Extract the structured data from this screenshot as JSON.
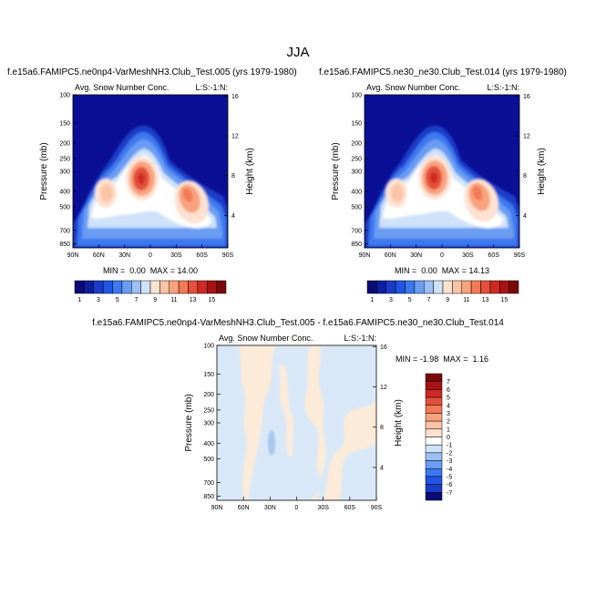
{
  "page_title": "JJA",
  "colors": {
    "neg_scale": [
      "#0a0a78",
      "#0d1fa0",
      "#1a3cc8",
      "#2255e6",
      "#3d78f0",
      "#6a9cf2",
      "#9cc0f5",
      "#cfe2fa"
    ],
    "pos_scale": [
      "#ffffff",
      "#fde2d2",
      "#fcc4a6",
      "#f9a27e",
      "#f27a56",
      "#e4503a",
      "#cc2a22",
      "#a81212",
      "#7a0808"
    ],
    "bg_blue": "#0a0f96",
    "diff_pos": "#fcebd8",
    "diff_neg": "#d8e8f8",
    "diff_neg2": "#a8c4ee"
  },
  "chart_data": [
    {
      "id": "panel1",
      "type": "heatmap",
      "title": "f.e15a6.FAMIPC5.ne0np4-VarMeshNH3.Club_Test.005 (yrs 1979-1980)",
      "subtitle_left": "Avg. Snow Number Conc.",
      "subtitle_right": "L:S:-1:N:",
      "ylabel": "Pressure (mb)",
      "ylabel_right": "Height (km)",
      "x_ticks": [
        "90N",
        "60N",
        "30N",
        "0",
        "30S",
        "60S",
        "90S"
      ],
      "y_ticks": [
        "100",
        "150",
        "200",
        "250",
        "300",
        "400",
        "500",
        "700",
        "850"
      ],
      "y_ticks_right": [
        "16",
        "12",
        "8",
        "4"
      ],
      "stats": "MIN =  0.00  MAX = 14.00",
      "colorbar_labels": [
        "1",
        "3",
        "5",
        "7",
        "9",
        "11",
        "13",
        "15"
      ],
      "min": 0.0,
      "max": 14.0
    },
    {
      "id": "panel2",
      "type": "heatmap",
      "title": "f.e15a6.FAMIPC5.ne30_ne30.Club_Test.014 (yrs 1979-1980)",
      "subtitle_left": "Avg. Snow Number Conc.",
      "subtitle_right": "L:S:-1:N:",
      "ylabel": "Pressure (mb)",
      "ylabel_right": "Height (km)",
      "x_ticks": [
        "90N",
        "60N",
        "30N",
        "0",
        "30S",
        "60S",
        "90S"
      ],
      "y_ticks": [
        "100",
        "150",
        "200",
        "250",
        "300",
        "400",
        "500",
        "700",
        "850"
      ],
      "y_ticks_right": [
        "16",
        "12",
        "8",
        "4"
      ],
      "stats": "MIN =  0.00  MAX = 14.13",
      "colorbar_labels": [
        "1",
        "3",
        "5",
        "7",
        "9",
        "11",
        "13",
        "15"
      ],
      "min": 0.0,
      "max": 14.13
    },
    {
      "id": "panel3",
      "type": "heatmap",
      "title": "f.e15a6.FAMIPC5.ne0np4-VarMeshNH3.Club_Test.005 - f.e15a6.FAMIPC5.ne30_ne30.Club_Test.014",
      "subtitle_left": "Avg. Snow Number Conc.",
      "subtitle_right": "L:S:-1:N:",
      "ylabel": "Pressure (mb)",
      "ylabel_right": "Height (km)",
      "x_ticks": [
        "90N",
        "60N",
        "30N",
        "0",
        "30S",
        "60S",
        "90S"
      ],
      "y_ticks": [
        "100",
        "150",
        "200",
        "250",
        "300",
        "400",
        "500",
        "700",
        "850"
      ],
      "y_ticks_right": [
        "16",
        "12",
        "8",
        "4"
      ],
      "stats": "MIN = -1.98  MAX =  1.16",
      "colorbar_labels": [
        "7",
        "6",
        "5",
        "4",
        "3",
        "2",
        "1",
        "0",
        "-1",
        "-2",
        "-3",
        "-4",
        "-5",
        "-6",
        "-7"
      ],
      "min": -1.98,
      "max": 1.16
    }
  ]
}
